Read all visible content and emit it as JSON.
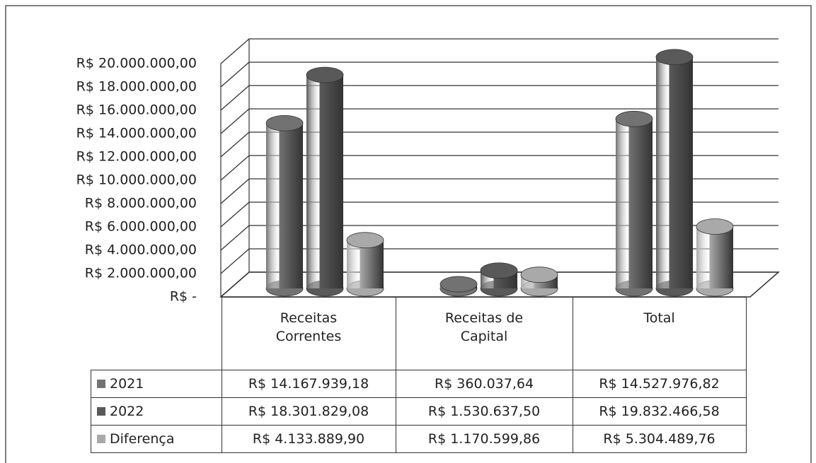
{
  "chart_data": {
    "type": "bar",
    "categories": [
      "Receitas Correntes",
      "Receitas de Capital",
      "Total"
    ],
    "series": [
      {
        "name": "2021",
        "color": "#727272",
        "values": [
          14167939.18,
          360037.64,
          14527976.82
        ],
        "value_labels": [
          "R$ 14.167.939,18",
          "R$ 360.037,64",
          "R$ 14.527.976,82"
        ]
      },
      {
        "name": "2022",
        "color": "#595959",
        "values": [
          18301829.08,
          1530637.5,
          19832466.58
        ],
        "value_labels": [
          "R$ 18.301.829,08",
          "R$ 1.530.637,50",
          "R$ 19.832.466,58"
        ]
      },
      {
        "name": "Diferença",
        "color": "#a9a9a9",
        "values": [
          4133889.9,
          1170599.86,
          5304489.76
        ],
        "value_labels": [
          "R$ 4.133.889,90",
          "R$ 1.170.599,86",
          "R$ 5.304.489,76"
        ]
      }
    ],
    "ylim": [
      0,
      20000000
    ],
    "yticks": [
      {
        "value": 0,
        "label": "R$ -"
      },
      {
        "value": 2000000,
        "label": "R$ 2.000.000,00"
      },
      {
        "value": 4000000,
        "label": "R$ 4.000.000,00"
      },
      {
        "value": 6000000,
        "label": "R$ 6.000.000,00"
      },
      {
        "value": 8000000,
        "label": "R$ 8.000.000,00"
      },
      {
        "value": 10000000,
        "label": "R$ 10.000.000,00"
      },
      {
        "value": 12000000,
        "label": "R$ 12.000.000,00"
      },
      {
        "value": 14000000,
        "label": "R$ 14.000.000,00"
      },
      {
        "value": 16000000,
        "label": "R$ 16.000.000,00"
      },
      {
        "value": 18000000,
        "label": "R$ 18.000.000,00"
      },
      {
        "value": 20000000,
        "label": "R$ 20.000.000,00"
      }
    ],
    "grid": true,
    "legend": "table"
  }
}
